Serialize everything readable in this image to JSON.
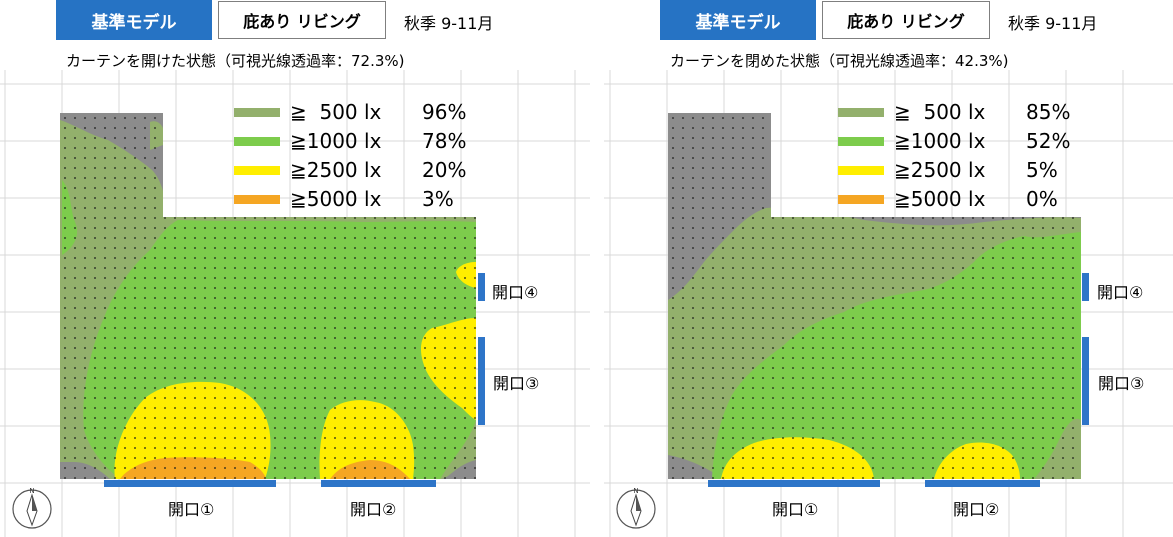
{
  "panels": [
    {
      "model_label": "基準モデル",
      "case_label": "庇あり リビング",
      "season": "秋季 9-11月",
      "subtitle": "カーテンを開けた状態（可視光線透過率：72.3%)",
      "legend": [
        {
          "label": "≧  500 lx",
          "pct": "96%",
          "color": "#93b06c"
        },
        {
          "label": "≧1000 lx",
          "pct": "78%",
          "color": "#7dcc4c"
        },
        {
          "label": "≧2500 lx",
          "pct": "20%",
          "color": "#ffee00"
        },
        {
          "label": "≧5000 lx",
          "pct": "3%",
          "color": "#f5a623"
        }
      ],
      "openings": [
        "開口①",
        "開口②",
        "開口③",
        "開口④"
      ]
    },
    {
      "model_label": "基準モデル",
      "case_label": "庇あり リビング",
      "season": "秋季 9-11月",
      "subtitle": "カーテンを閉めた状態（可視光線透過率：42.3%)",
      "legend": [
        {
          "label": "≧  500 lx",
          "pct": "85%",
          "color": "#93b06c"
        },
        {
          "label": "≧1000 lx",
          "pct": "52%",
          "color": "#7dcc4c"
        },
        {
          "label": "≧2500 lx",
          "pct": "5%",
          "color": "#ffee00"
        },
        {
          "label": "≧5000 lx",
          "pct": "0%",
          "color": "#f5a623"
        }
      ],
      "openings": [
        "開口①",
        "開口②",
        "開口③",
        "開口④"
      ]
    }
  ],
  "compass": {
    "north_label": "N"
  },
  "colors": {
    "below_500": "#8c8c8c",
    "opening": "#2e75c8",
    "grid": "#d9d9d9",
    "header": "#2673c4"
  }
}
